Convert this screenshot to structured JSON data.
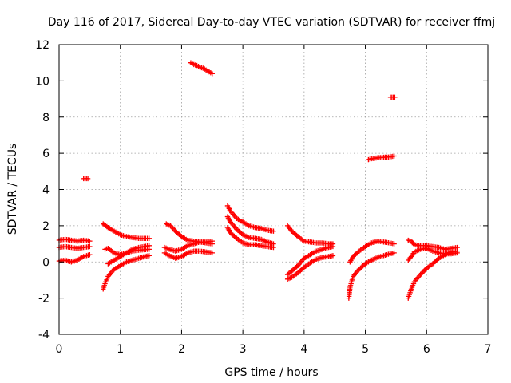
{
  "chart_data": {
    "type": "scatter",
    "title": "Day 116 of 2017, Sidereal Day-to-day VTEC variation (SDTVAR) for receiver ffmj",
    "xlabel": "GPS time / hours",
    "ylabel": "SDTVAR / TECUs",
    "xlim": [
      0,
      7
    ],
    "ylim": [
      -4,
      12
    ],
    "xticks": [
      0,
      1,
      2,
      3,
      4,
      5,
      6,
      7
    ],
    "yticks": [
      -4,
      -2,
      0,
      2,
      4,
      6,
      8,
      10,
      12
    ],
    "grid": true,
    "legend": "none",
    "marker": "plus",
    "color": "#ff0000",
    "series": [
      {
        "points": [
          [
            0.0,
            1.2
          ],
          [
            0.1,
            1.25
          ],
          [
            0.2,
            1.2
          ],
          [
            0.3,
            1.15
          ],
          [
            0.4,
            1.2
          ],
          [
            0.5,
            1.15
          ]
        ]
      },
      {
        "points": [
          [
            0.0,
            0.8
          ],
          [
            0.1,
            0.85
          ],
          [
            0.2,
            0.8
          ],
          [
            0.3,
            0.75
          ],
          [
            0.4,
            0.8
          ],
          [
            0.5,
            0.85
          ]
        ]
      },
      {
        "points": [
          [
            0.0,
            0.05
          ],
          [
            0.1,
            0.1
          ],
          [
            0.2,
            0.0
          ],
          [
            0.3,
            0.1
          ],
          [
            0.4,
            0.3
          ],
          [
            0.5,
            0.4
          ]
        ]
      },
      {
        "points": [
          [
            0.4,
            4.6
          ],
          [
            0.47,
            4.6
          ]
        ]
      },
      {
        "points": [
          [
            0.72,
            -1.5
          ],
          [
            0.75,
            -1.2
          ],
          [
            0.8,
            -0.8
          ],
          [
            0.9,
            -0.4
          ],
          [
            1.0,
            -0.2
          ],
          [
            1.1,
            0.0
          ],
          [
            1.2,
            0.1
          ],
          [
            1.3,
            0.2
          ],
          [
            1.4,
            0.3
          ],
          [
            1.47,
            0.35
          ]
        ]
      },
      {
        "points": [
          [
            0.72,
            2.1
          ],
          [
            0.8,
            1.9
          ],
          [
            0.9,
            1.7
          ],
          [
            1.0,
            1.5
          ],
          [
            1.1,
            1.4
          ],
          [
            1.2,
            1.35
          ],
          [
            1.3,
            1.3
          ],
          [
            1.47,
            1.3
          ]
        ]
      },
      {
        "points": [
          [
            0.75,
            0.7
          ],
          [
            0.8,
            0.75
          ],
          [
            0.9,
            0.5
          ],
          [
            1.0,
            0.4
          ],
          [
            1.1,
            0.5
          ],
          [
            1.2,
            0.6
          ],
          [
            1.3,
            0.65
          ],
          [
            1.47,
            0.7
          ]
        ]
      },
      {
        "points": [
          [
            0.8,
            -0.1
          ],
          [
            0.9,
            0.1
          ],
          [
            1.0,
            0.3
          ],
          [
            1.1,
            0.5
          ],
          [
            1.2,
            0.7
          ],
          [
            1.3,
            0.8
          ],
          [
            1.47,
            0.9
          ]
        ]
      },
      {
        "points": [
          [
            1.75,
            2.1
          ],
          [
            1.82,
            2.0
          ],
          [
            1.9,
            1.7
          ],
          [
            2.0,
            1.4
          ],
          [
            2.1,
            1.2
          ],
          [
            2.2,
            1.15
          ],
          [
            2.3,
            1.1
          ],
          [
            2.4,
            1.1
          ],
          [
            2.5,
            1.15
          ]
        ]
      },
      {
        "points": [
          [
            1.72,
            0.8
          ],
          [
            1.8,
            0.7
          ],
          [
            1.9,
            0.6
          ],
          [
            2.0,
            0.7
          ],
          [
            2.1,
            0.9
          ],
          [
            2.2,
            1.0
          ],
          [
            2.3,
            1.1
          ],
          [
            2.4,
            1.05
          ],
          [
            2.5,
            1.0
          ]
        ]
      },
      {
        "points": [
          [
            1.72,
            0.5
          ],
          [
            1.8,
            0.35
          ],
          [
            1.9,
            0.2
          ],
          [
            2.0,
            0.3
          ],
          [
            2.1,
            0.5
          ],
          [
            2.2,
            0.6
          ],
          [
            2.3,
            0.6
          ],
          [
            2.4,
            0.55
          ],
          [
            2.5,
            0.5
          ]
        ]
      },
      {
        "points": [
          [
            2.15,
            11.0
          ],
          [
            2.2,
            10.9
          ],
          [
            2.25,
            10.85
          ],
          [
            2.3,
            10.75
          ],
          [
            2.35,
            10.7
          ],
          [
            2.4,
            10.6
          ],
          [
            2.45,
            10.5
          ],
          [
            2.5,
            10.4
          ]
        ]
      },
      {
        "points": [
          [
            2.75,
            3.1
          ],
          [
            2.8,
            2.8
          ],
          [
            2.9,
            2.4
          ],
          [
            3.0,
            2.2
          ],
          [
            3.1,
            2.0
          ],
          [
            3.2,
            1.9
          ],
          [
            3.3,
            1.85
          ],
          [
            3.4,
            1.75
          ],
          [
            3.5,
            1.7
          ]
        ]
      },
      {
        "points": [
          [
            2.75,
            2.5
          ],
          [
            2.8,
            2.2
          ],
          [
            2.9,
            1.8
          ],
          [
            3.0,
            1.5
          ],
          [
            3.1,
            1.35
          ],
          [
            3.2,
            1.3
          ],
          [
            3.3,
            1.25
          ],
          [
            3.4,
            1.1
          ],
          [
            3.5,
            1.0
          ]
        ]
      },
      {
        "points": [
          [
            2.75,
            1.9
          ],
          [
            2.8,
            1.6
          ],
          [
            2.9,
            1.3
          ],
          [
            3.0,
            1.05
          ],
          [
            3.1,
            0.95
          ],
          [
            3.2,
            0.95
          ],
          [
            3.3,
            0.9
          ],
          [
            3.4,
            0.85
          ],
          [
            3.5,
            0.8
          ]
        ]
      },
      {
        "points": [
          [
            3.73,
            2.0
          ],
          [
            3.8,
            1.7
          ],
          [
            3.9,
            1.4
          ],
          [
            4.0,
            1.15
          ],
          [
            4.1,
            1.1
          ],
          [
            4.2,
            1.05
          ],
          [
            4.3,
            1.05
          ],
          [
            4.4,
            1.0
          ],
          [
            4.47,
            1.0
          ]
        ]
      },
      {
        "points": [
          [
            3.73,
            -0.7
          ],
          [
            3.8,
            -0.5
          ],
          [
            3.9,
            -0.2
          ],
          [
            4.0,
            0.2
          ],
          [
            4.1,
            0.4
          ],
          [
            4.2,
            0.6
          ],
          [
            4.3,
            0.7
          ],
          [
            4.4,
            0.8
          ],
          [
            4.47,
            0.85
          ]
        ]
      },
      {
        "points": [
          [
            3.73,
            -0.95
          ],
          [
            3.8,
            -0.85
          ],
          [
            3.9,
            -0.6
          ],
          [
            4.0,
            -0.3
          ],
          [
            4.1,
            -0.05
          ],
          [
            4.2,
            0.15
          ],
          [
            4.3,
            0.25
          ],
          [
            4.4,
            0.3
          ],
          [
            4.47,
            0.35
          ]
        ]
      },
      {
        "points": [
          [
            4.73,
            -2.0
          ],
          [
            4.75,
            -1.4
          ],
          [
            4.8,
            -0.8
          ],
          [
            4.9,
            -0.4
          ],
          [
            5.0,
            -0.1
          ],
          [
            5.1,
            0.1
          ],
          [
            5.2,
            0.25
          ],
          [
            5.3,
            0.35
          ],
          [
            5.4,
            0.45
          ],
          [
            5.47,
            0.5
          ]
        ]
      },
      {
        "points": [
          [
            4.75,
            0.0
          ],
          [
            4.8,
            0.3
          ],
          [
            4.9,
            0.6
          ],
          [
            5.0,
            0.85
          ],
          [
            5.1,
            1.05
          ],
          [
            5.2,
            1.15
          ],
          [
            5.3,
            1.1
          ],
          [
            5.4,
            1.05
          ],
          [
            5.47,
            1.0
          ]
        ]
      },
      {
        "points": [
          [
            5.05,
            5.65
          ],
          [
            5.1,
            5.7
          ],
          [
            5.2,
            5.75
          ],
          [
            5.3,
            5.78
          ],
          [
            5.4,
            5.8
          ],
          [
            5.47,
            5.85
          ]
        ]
      },
      {
        "points": [
          [
            5.41,
            9.1
          ],
          [
            5.48,
            9.1
          ]
        ]
      },
      {
        "points": [
          [
            5.7,
            -2.0
          ],
          [
            5.75,
            -1.5
          ],
          [
            5.8,
            -1.1
          ],
          [
            5.9,
            -0.7
          ],
          [
            6.0,
            -0.35
          ],
          [
            6.1,
            -0.1
          ],
          [
            6.2,
            0.2
          ],
          [
            6.3,
            0.4
          ],
          [
            6.4,
            0.55
          ],
          [
            6.5,
            0.6
          ]
        ]
      },
      {
        "points": [
          [
            5.7,
            1.2
          ],
          [
            5.75,
            1.15
          ],
          [
            5.8,
            0.95
          ],
          [
            5.9,
            0.9
          ],
          [
            6.0,
            0.9
          ],
          [
            6.1,
            0.85
          ],
          [
            6.2,
            0.8
          ],
          [
            6.3,
            0.7
          ],
          [
            6.4,
            0.75
          ],
          [
            6.5,
            0.8
          ]
        ]
      },
      {
        "points": [
          [
            5.7,
            0.1
          ],
          [
            5.75,
            0.3
          ],
          [
            5.8,
            0.55
          ],
          [
            5.9,
            0.7
          ],
          [
            6.0,
            0.75
          ],
          [
            6.1,
            0.6
          ],
          [
            6.2,
            0.5
          ],
          [
            6.3,
            0.45
          ],
          [
            6.4,
            0.45
          ],
          [
            6.5,
            0.5
          ]
        ]
      }
    ]
  }
}
